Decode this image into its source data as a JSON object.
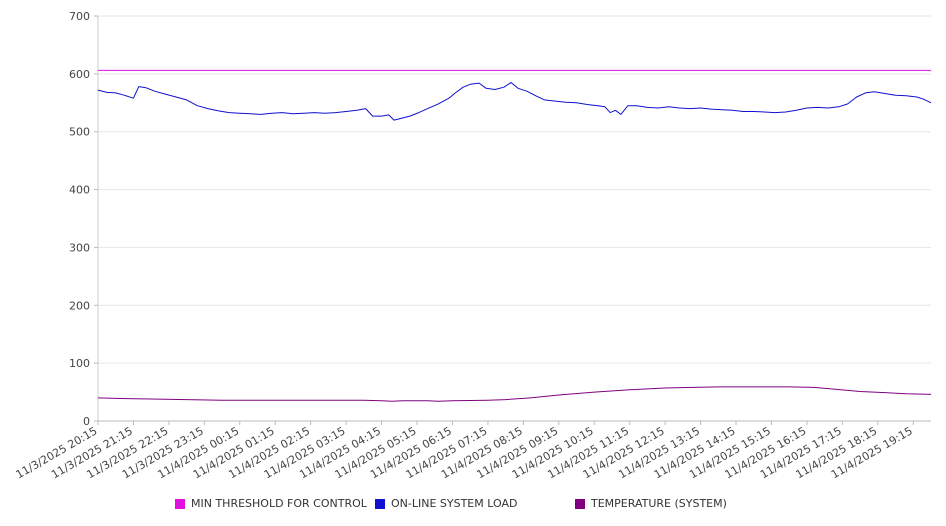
{
  "chart_data": {
    "type": "line",
    "title": "",
    "xlabel": "",
    "ylabel": "",
    "ylim": [
      0,
      700
    ],
    "yticks": [
      0,
      100,
      200,
      300,
      400,
      500,
      600,
      700
    ],
    "grid": true,
    "legend_position": "bottom",
    "x_labels": [
      "11/3/2025 20:15",
      "11/3/2025 21:15",
      "11/3/2025 22:15",
      "11/3/2025 23:15",
      "11/4/2025 00:15",
      "11/4/2025 01:15",
      "11/4/2025 02:15",
      "11/4/2025 03:15",
      "11/4/2025 04:15",
      "11/4/2025 05:15",
      "11/4/2025 06:15",
      "11/4/2025 07:15",
      "11/4/2025 08:15",
      "11/4/2025 09:15",
      "11/4/2025 10:15",
      "11/4/2025 11:15",
      "11/4/2025 12:15",
      "11/4/2025 13:15",
      "11/4/2025 14:15",
      "11/4/2025 15:15",
      "11/4/2025 16:15",
      "11/4/2025 17:15",
      "11/4/2025 18:15",
      "11/4/2025 19:15"
    ],
    "x_hours": [
      0,
      23.5
    ],
    "series": [
      {
        "name": "MIN THRESHOLD FOR CONTROL",
        "color": "#e010e0",
        "points": [
          [
            0,
            606
          ],
          [
            23.5,
            606
          ]
        ]
      },
      {
        "name": "ON-LINE SYSTEM LOAD",
        "color": "#1010d0",
        "points": [
          [
            0,
            572
          ],
          [
            0.25,
            568
          ],
          [
            0.5,
            567
          ],
          [
            0.75,
            563
          ],
          [
            1.0,
            558
          ],
          [
            1.15,
            578
          ],
          [
            1.35,
            576
          ],
          [
            1.6,
            570
          ],
          [
            1.9,
            565
          ],
          [
            2.2,
            560
          ],
          [
            2.5,
            555
          ],
          [
            2.8,
            545
          ],
          [
            3.1,
            540
          ],
          [
            3.4,
            536
          ],
          [
            3.7,
            533
          ],
          [
            4.0,
            532
          ],
          [
            4.3,
            531
          ],
          [
            4.6,
            530
          ],
          [
            4.9,
            532
          ],
          [
            5.2,
            533
          ],
          [
            5.5,
            531
          ],
          [
            5.8,
            532
          ],
          [
            6.1,
            533
          ],
          [
            6.4,
            532
          ],
          [
            6.7,
            533
          ],
          [
            7.0,
            535
          ],
          [
            7.3,
            537
          ],
          [
            7.55,
            540
          ],
          [
            7.75,
            527
          ],
          [
            8.0,
            527
          ],
          [
            8.2,
            529
          ],
          [
            8.35,
            520
          ],
          [
            8.55,
            523
          ],
          [
            8.8,
            527
          ],
          [
            9.05,
            533
          ],
          [
            9.3,
            540
          ],
          [
            9.6,
            548
          ],
          [
            9.9,
            558
          ],
          [
            10.1,
            568
          ],
          [
            10.3,
            577
          ],
          [
            10.5,
            582
          ],
          [
            10.75,
            584
          ],
          [
            10.95,
            575
          ],
          [
            11.2,
            573
          ],
          [
            11.45,
            577
          ],
          [
            11.65,
            585
          ],
          [
            11.85,
            575
          ],
          [
            12.1,
            570
          ],
          [
            12.35,
            562
          ],
          [
            12.6,
            555
          ],
          [
            12.9,
            553
          ],
          [
            13.2,
            551
          ],
          [
            13.5,
            550
          ],
          [
            13.8,
            547
          ],
          [
            14.1,
            545
          ],
          [
            14.3,
            543
          ],
          [
            14.45,
            533
          ],
          [
            14.6,
            537
          ],
          [
            14.75,
            530
          ],
          [
            14.95,
            545
          ],
          [
            15.2,
            545
          ],
          [
            15.5,
            542
          ],
          [
            15.8,
            541
          ],
          [
            16.1,
            543
          ],
          [
            16.4,
            541
          ],
          [
            16.7,
            540
          ],
          [
            17.0,
            541
          ],
          [
            17.3,
            539
          ],
          [
            17.6,
            538
          ],
          [
            17.9,
            537
          ],
          [
            18.2,
            535
          ],
          [
            18.5,
            535
          ],
          [
            18.8,
            534
          ],
          [
            19.1,
            533
          ],
          [
            19.4,
            534
          ],
          [
            19.7,
            537
          ],
          [
            20.0,
            541
          ],
          [
            20.3,
            542
          ],
          [
            20.6,
            541
          ],
          [
            20.9,
            543
          ],
          [
            21.15,
            548
          ],
          [
            21.4,
            560
          ],
          [
            21.65,
            567
          ],
          [
            21.9,
            569
          ],
          [
            22.2,
            566
          ],
          [
            22.5,
            563
          ],
          [
            22.8,
            562
          ],
          [
            23.1,
            560
          ],
          [
            23.3,
            556
          ],
          [
            23.5,
            550
          ]
        ]
      },
      {
        "name": "TEMPERATURE (SYSTEM)",
        "color": "#800080",
        "points": [
          [
            0,
            40
          ],
          [
            0.5,
            39
          ],
          [
            1.5,
            38
          ],
          [
            2.5,
            37
          ],
          [
            3.5,
            36
          ],
          [
            5,
            36
          ],
          [
            6.5,
            36
          ],
          [
            7.5,
            36
          ],
          [
            8.0,
            35
          ],
          [
            8.3,
            34
          ],
          [
            8.6,
            35
          ],
          [
            9.3,
            35
          ],
          [
            9.6,
            34
          ],
          [
            10.0,
            35
          ],
          [
            11.0,
            36
          ],
          [
            11.5,
            37
          ],
          [
            12.2,
            40
          ],
          [
            13.0,
            45
          ],
          [
            14.0,
            50
          ],
          [
            15.0,
            54
          ],
          [
            16.0,
            57
          ],
          [
            16.8,
            58
          ],
          [
            17.5,
            59
          ],
          [
            18.5,
            59
          ],
          [
            19.5,
            59
          ],
          [
            20.2,
            58
          ],
          [
            20.8,
            55
          ],
          [
            21.5,
            51
          ],
          [
            22.2,
            49
          ],
          [
            22.8,
            47
          ],
          [
            23.5,
            46
          ]
        ]
      }
    ]
  }
}
